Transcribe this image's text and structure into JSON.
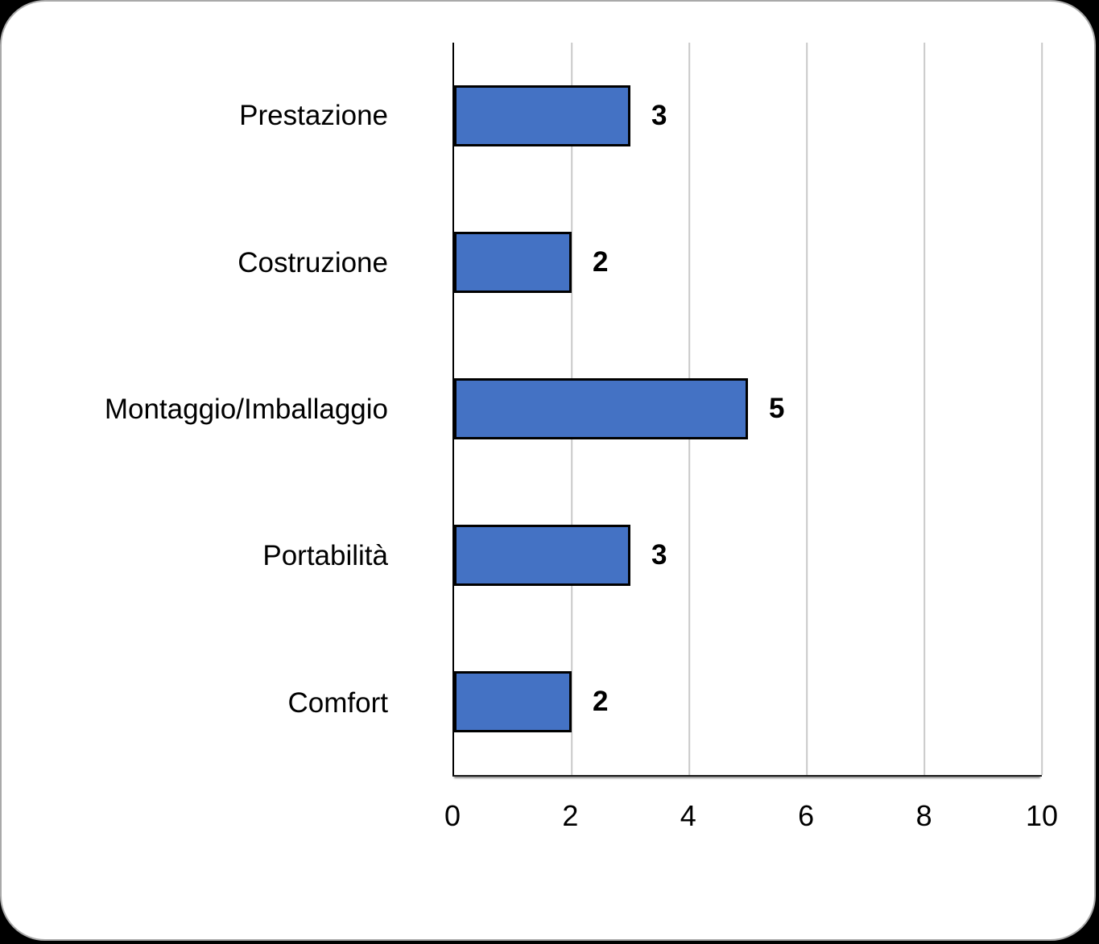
{
  "chart_data": {
    "type": "bar",
    "orientation": "horizontal",
    "title": "",
    "xlabel": "",
    "ylabel": "",
    "categories": [
      "Prestazione",
      "Costruzione",
      "Montaggio/Imballaggio",
      "Portabilità",
      "Comfort"
    ],
    "values": [
      3,
      2,
      5,
      3,
      2
    ],
    "data_labels": [
      "3",
      "2",
      "5",
      "3",
      "2"
    ],
    "xlim": [
      0,
      10
    ],
    "x_ticks": [
      "0",
      "2",
      "4",
      "6",
      "8",
      "10"
    ],
    "x_tick_values": [
      0,
      2,
      4,
      6,
      8,
      10
    ],
    "grid": "vertical",
    "legend": "none",
    "colors": {
      "bar_fill": "#4472C4",
      "bar_border": "#000000",
      "gridline": "#c9c9c9",
      "axis": "#000000",
      "text": "#000000",
      "card_background": "#ffffff",
      "page_background": "#000000"
    }
  }
}
